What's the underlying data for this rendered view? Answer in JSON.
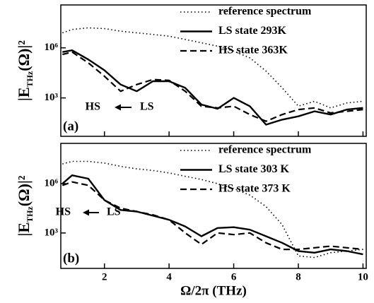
{
  "chart_data": [
    {
      "type": "line",
      "log_y": true,
      "xlim": [
        0.65,
        10.1
      ],
      "ylim": [
        5,
        370000000
      ],
      "yticks": [
        {
          "value": 1000,
          "label": "10³"
        },
        {
          "value": 1000000,
          "label": "10⁶"
        }
      ],
      "xticks": [
        2,
        4,
        6,
        8,
        10
      ],
      "show_xtick_labels": false,
      "legend": "upper right",
      "ylabel": [
        "|E",
        "THz",
        "(Ω)|²"
      ],
      "panel_label": "(a)",
      "arrow_from": "LS",
      "arrow_to": "HS",
      "x": [
        0.7,
        1,
        1.5,
        2,
        2.5,
        3,
        3.5,
        4,
        4.5,
        5,
        5.5,
        6,
        6.5,
        7,
        7.5,
        8,
        8.5,
        9,
        9.5,
        10
      ],
      "series": [
        {
          "name": "reference spectrum",
          "color": "#000",
          "style": "dotted",
          "values": [
            7900000,
            12600000,
            15800000,
            14100000,
            10000000,
            7900000,
            6300000,
            5000000,
            3200000,
            2000000,
            1260000,
            630000,
            250000,
            40000,
            4000,
            320,
            630,
            250,
            500,
            630
          ]
        },
        {
          "name": "LS state 293K",
          "color": "#000",
          "style": "solid",
          "values": [
            560000,
            710000,
            200000,
            45000,
            6300,
            2500,
            10000,
            10000,
            4000,
            400,
            224,
            1000,
            316,
            25,
            50,
            79,
            158,
            100,
            200,
            250
          ]
        },
        {
          "name": "HS state 363K",
          "color": "#000",
          "style": "dashed",
          "values": [
            400000,
            560000,
            126000,
            20000,
            2500,
            6300,
            12600,
            11200,
            2500,
            316,
            250,
            316,
            100,
            40,
            100,
            200,
            250,
            126,
            158,
            200
          ]
        }
      ]
    },
    {
      "type": "line",
      "log_y": true,
      "xlim": [
        0.65,
        10.1
      ],
      "ylim": [
        7,
        280000000
      ],
      "yticks": [
        {
          "value": 1000,
          "label": "10³"
        },
        {
          "value": 1000000,
          "label": "10⁶"
        }
      ],
      "xticks": [
        2,
        4,
        6,
        8,
        10
      ],
      "show_xtick_labels": true,
      "legend": "upper right",
      "ylabel": [
        "|E",
        "THz",
        "(Ω)|²"
      ],
      "xlabel": "Ω/2π (THz)",
      "panel_label": "(b)",
      "arrow_from": "LS",
      "arrow_to": "HS",
      "x": [
        0.7,
        1,
        1.5,
        2,
        2.5,
        3,
        3.5,
        4,
        4.5,
        5,
        5.5,
        6,
        6.5,
        7,
        7.5,
        8,
        8.5,
        9,
        9.5,
        10
      ],
      "series": [
        {
          "name": "reference spectrum",
          "color": "#000",
          "style": "dotted",
          "values": [
            15800000,
            22400000,
            22400000,
            17800000,
            11200000,
            7900000,
            6300000,
            4500000,
            2800000,
            1780000,
            1000000,
            500000,
            200000,
            40000,
            3160,
            40,
            32,
            63,
            79,
            100
          ]
        },
        {
          "name": "LS state 303 K",
          "color": "#000",
          "style": "solid",
          "values": [
            1000000,
            3200000,
            2000000,
            100000,
            25000,
            20000,
            11200,
            6300,
            2500,
            630,
            2000,
            2240,
            1580,
            630,
            250,
            79,
            63,
            100,
            79,
            50
          ]
        },
        {
          "name": "HS state 373 K",
          "color": "#000",
          "style": "dashed",
          "values": [
            790000,
            1260000,
            790000,
            100000,
            32000,
            20000,
            12600,
            6300,
            1000,
            200,
            1000,
            790,
            1000,
            250,
            100,
            100,
            126,
            158,
            126,
            100
          ]
        }
      ]
    }
  ]
}
